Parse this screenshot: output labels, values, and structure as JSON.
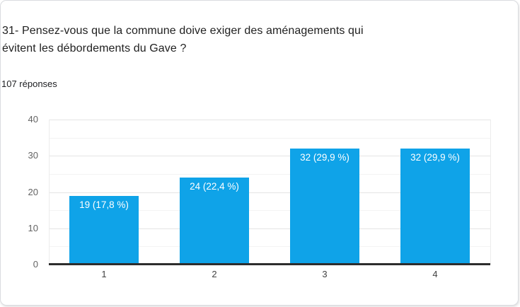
{
  "card": {
    "title": "31- Pensez-vous que la commune doive exiger des aménagements qui évitent les débordements du Gave ?",
    "title_lines": [
      "31- Pensez-vous que la commune doive exiger des aménagements qui",
      "évitent les débordements du Gave ?"
    ],
    "responses_count_label": "107 réponses"
  },
  "chart_data": {
    "type": "bar",
    "categories": [
      "1",
      "2",
      "3",
      "4"
    ],
    "values": [
      19,
      24,
      32,
      32
    ],
    "percentages": [
      17.8,
      22.4,
      29.9,
      29.9
    ],
    "bar_labels": [
      "19 (17,8 %)",
      "24 (22,4 %)",
      "32 (29,9 %)",
      "32 (29,9 %)"
    ],
    "title": "",
    "xlabel": "",
    "ylabel": "",
    "ylim": [
      0,
      40
    ],
    "yticks": [
      0,
      10,
      20,
      30,
      40
    ],
    "grid": true,
    "legend": "none",
    "colors": {
      "bar": "#0fa3e8",
      "bar_label_text": "#ffffff",
      "axis_line": "#2d2d2d",
      "gridline_major": "#e4e4e4",
      "gridline_minor": "#f3f3f3",
      "tick_text": "#555555",
      "title_text": "#212121"
    }
  }
}
